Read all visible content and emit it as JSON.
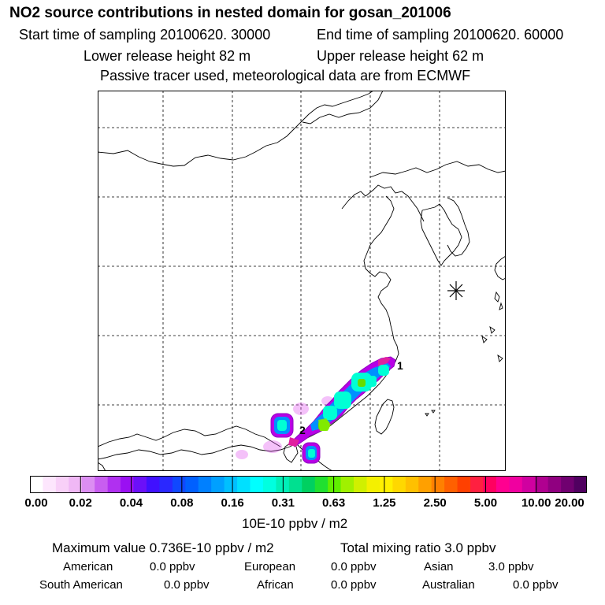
{
  "header": {
    "title": "NO2 source contributions in nested domain for gosan_201006",
    "start_time": "Start time of sampling 20100620. 30000",
    "end_time": "End time of sampling 20100620. 60000",
    "lower_release": "Lower release height   82 m",
    "upper_release": "Upper release height   62 m",
    "tracer_note": "Passive tracer used, meteorological data are from ECMWF"
  },
  "map": {
    "receptor_symbol": "asterisk-receptor",
    "source_labels": [
      "1",
      "2"
    ],
    "colors": {
      "coast": "#000000",
      "grid": "#000000",
      "plume_outer": "#b800e6",
      "plume_mid": "#0090ff",
      "plume_core": "#00ffd5",
      "plume_peak": "#66dd00"
    }
  },
  "colorbar": {
    "tick_labels": [
      "0.00",
      "0.02",
      "0.04",
      "0.08",
      "0.16",
      "0.31",
      "0.63",
      "1.25",
      "2.50",
      "5.00",
      "10.00",
      "20.00"
    ],
    "colors": [
      "#ffffff",
      "#fde6fd",
      "#f8d0f8",
      "#f0b8f5",
      "#dc8ef2",
      "#c85ef0",
      "#b030f0",
      "#9a10f2",
      "#6b10f8",
      "#4010ff",
      "#2a28ff",
      "#1048ff",
      "#0060ff",
      "#0080ff",
      "#00a0ff",
      "#00c0ff",
      "#00e0ff",
      "#00ffff",
      "#00ffe0",
      "#00f0b8",
      "#00e090",
      "#00d060",
      "#20e030",
      "#60ee00",
      "#a0f000",
      "#d0f000",
      "#f4f000",
      "#fff000",
      "#ffd800",
      "#ffc000",
      "#ffa000",
      "#ff8000",
      "#ff6000",
      "#ff4000",
      "#ff2040",
      "#ff0060",
      "#ff0090",
      "#f000a0",
      "#d000a0",
      "#b00090",
      "#900080",
      "#700070",
      "#500060"
    ],
    "units": "10E-10 ppbv / m2"
  },
  "summary": {
    "max_value": "Maximum value  0.736E-10 ppbv / m2",
    "total_mixing": "Total mixing ratio       3.0 ppbv",
    "regions": [
      {
        "name": "American",
        "value": "0.0 ppbv"
      },
      {
        "name": "European",
        "value": "0.0 ppbv"
      },
      {
        "name": "Asian",
        "value": "3.0 ppbv"
      },
      {
        "name": "South American",
        "value": "0.0 ppbv"
      },
      {
        "name": "African",
        "value": "0.0 ppbv"
      },
      {
        "name": "Australian",
        "value": "0.0 ppbv"
      }
    ]
  }
}
